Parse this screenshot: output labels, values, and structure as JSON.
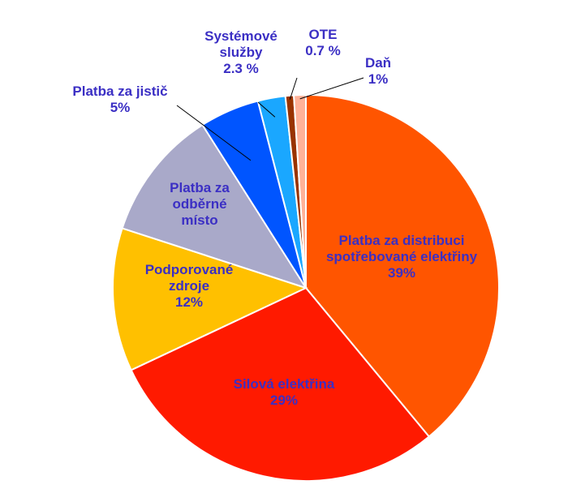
{
  "chart_data": {
    "type": "pie",
    "title": "",
    "legend": "none",
    "start_angle_deg": 0,
    "direction": "clockwise",
    "slices": [
      {
        "name": "Platba za distribuci spotřebované elektřiny",
        "value": 39,
        "color": "#ff5500",
        "label_lines": [
          "Platba za distribuci",
          "spotřebované elektřiny",
          "39%"
        ]
      },
      {
        "name": "Silová elektřina",
        "value": 29,
        "color": "#ff1a00",
        "label_lines": [
          "Silová elektřina",
          "29%"
        ]
      },
      {
        "name": "Podporované zdroje",
        "value": 12,
        "color": "#ffc000",
        "label_lines": [
          "Podporované",
          "zdroje",
          "12%"
        ]
      },
      {
        "name": "Platba za odběrné místo",
        "value": 11,
        "color": "#a9a9c9",
        "label_lines": [
          "Platba za",
          "odběrné",
          "místo"
        ]
      },
      {
        "name": "Platba za jistič",
        "value": 5,
        "color": "#0055ff",
        "label_lines": [
          "Platba za jistič",
          "5%"
        ]
      },
      {
        "name": "Systémové služby",
        "value": 2.3,
        "color": "#1aa7ff",
        "label_lines": [
          "Systémové",
          "služby",
          "2.3 %"
        ]
      },
      {
        "name": "OTE",
        "value": 0.7,
        "color": "#993300",
        "label_lines": [
          "OTE",
          "0.7 %"
        ]
      },
      {
        "name": "Daň",
        "value": 1,
        "color": "#ffb299",
        "label_lines": [
          "Daň",
          "1%"
        ]
      }
    ]
  }
}
